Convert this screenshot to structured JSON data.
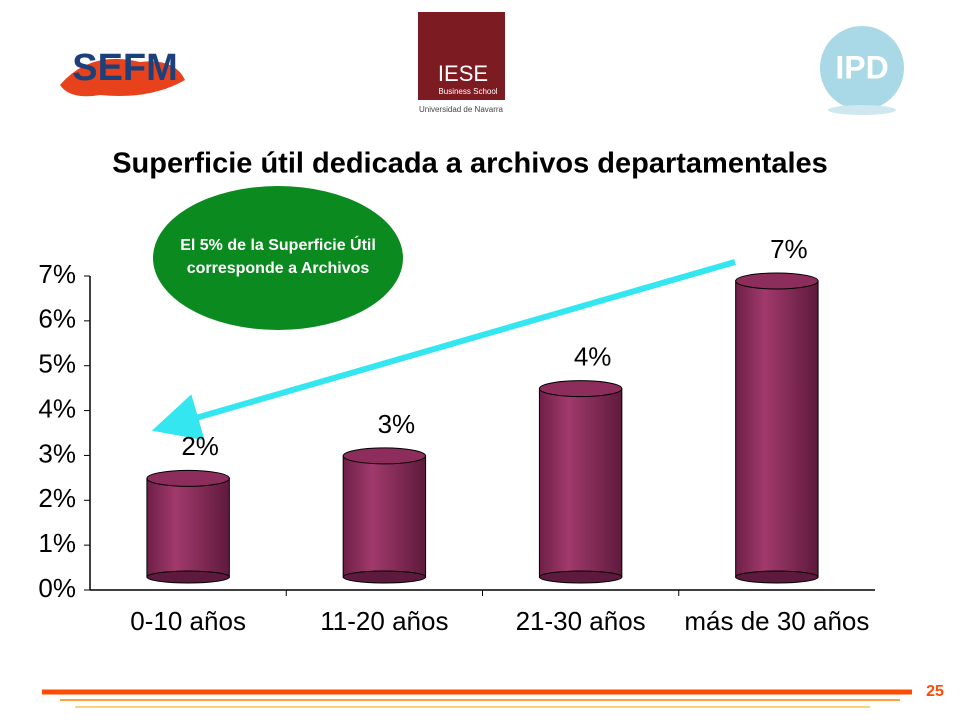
{
  "header": {
    "logo_left": "SEFM",
    "logo_center": "IESE",
    "logo_center_sub": "Business School",
    "logo_center_caption": "Universidad de Navarra",
    "logo_right": "IPD"
  },
  "chart_data": {
    "type": "bar",
    "title": "Superficie útil dedicada a archivos departamentales",
    "annotation": "El 5% de la Superficie Útil corresponde a Archivos",
    "categories": [
      "0-10 años",
      "11-20 años",
      "21-30 años",
      "más de 30 años"
    ],
    "values": [
      2.4,
      2.9,
      4.4,
      6.8
    ],
    "value_labels": [
      "2%",
      "3%",
      "4%",
      "7%"
    ],
    "color": "#8c2d5c",
    "ylim": [
      0,
      7
    ],
    "yticks": [
      {
        "value": 0,
        "label": "0%"
      },
      {
        "value": 1,
        "label": "1%"
      },
      {
        "value": 2,
        "label": "2%"
      },
      {
        "value": 3,
        "label": "3%"
      },
      {
        "value": 4,
        "label": "4%"
      },
      {
        "value": 5,
        "label": "5%"
      },
      {
        "value": 6,
        "label": "6%"
      },
      {
        "value": 7,
        "label": "7%"
      }
    ],
    "grid": false
  },
  "footer": {
    "page_number": "25"
  }
}
